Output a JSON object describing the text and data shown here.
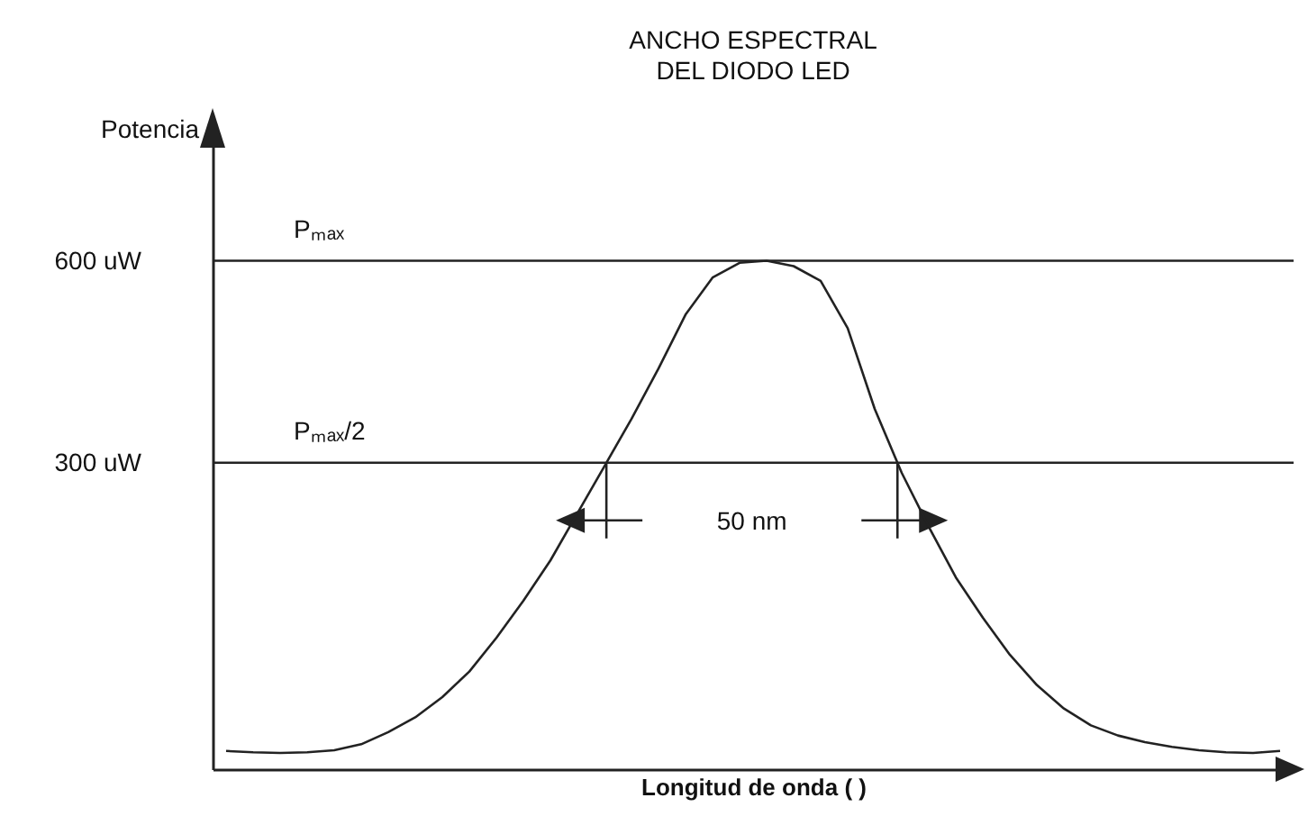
{
  "chart_data": {
    "type": "line",
    "title": "ANCHO ESPECTRAL\nDEL DIODO LED",
    "xlabel": "Longitud de onda ( )",
    "ylabel": "Potencia",
    "categories": [
      null,
      null,
      null,
      null,
      null,
      null,
      null,
      null,
      null,
      null,
      null,
      null,
      null,
      null,
      null,
      null,
      null,
      null,
      null,
      null,
      null,
      null,
      null,
      null,
      null,
      null,
      null,
      null,
      null,
      null,
      null,
      null,
      null,
      null,
      null,
      null,
      null,
      null,
      null,
      null
    ],
    "series": [
      {
        "color": "#222222",
        "values": [
          -128,
          -130,
          -131,
          -130,
          -127,
          -118,
          -100,
          -78,
          -48,
          -10,
          40,
          95,
          155,
          225,
          295,
          365,
          440,
          520,
          575,
          597,
          600,
          592,
          570,
          500,
          380,
          285,
          205,
          130,
          70,
          15,
          -30,
          -65,
          -90,
          -105,
          -115,
          -122,
          -127,
          -130,
          -131,
          -128
        ]
      }
    ],
    "ylim": [
      -155,
      800
    ],
    "yticks": [
      {
        "value": 300,
        "label": "300 uW"
      },
      {
        "value": 600,
        "label": "600 uW"
      }
    ],
    "ref_lines": [
      {
        "axis": "y",
        "value": 600,
        "label": "Pₘₐₓ",
        "color": "#222222"
      },
      {
        "axis": "y",
        "value": 300,
        "label": "Pₘₐₓ/2",
        "color": "#222222"
      }
    ],
    "annotations": [
      "50 nm"
    ],
    "tick_labels": "y",
    "grid": false
  }
}
